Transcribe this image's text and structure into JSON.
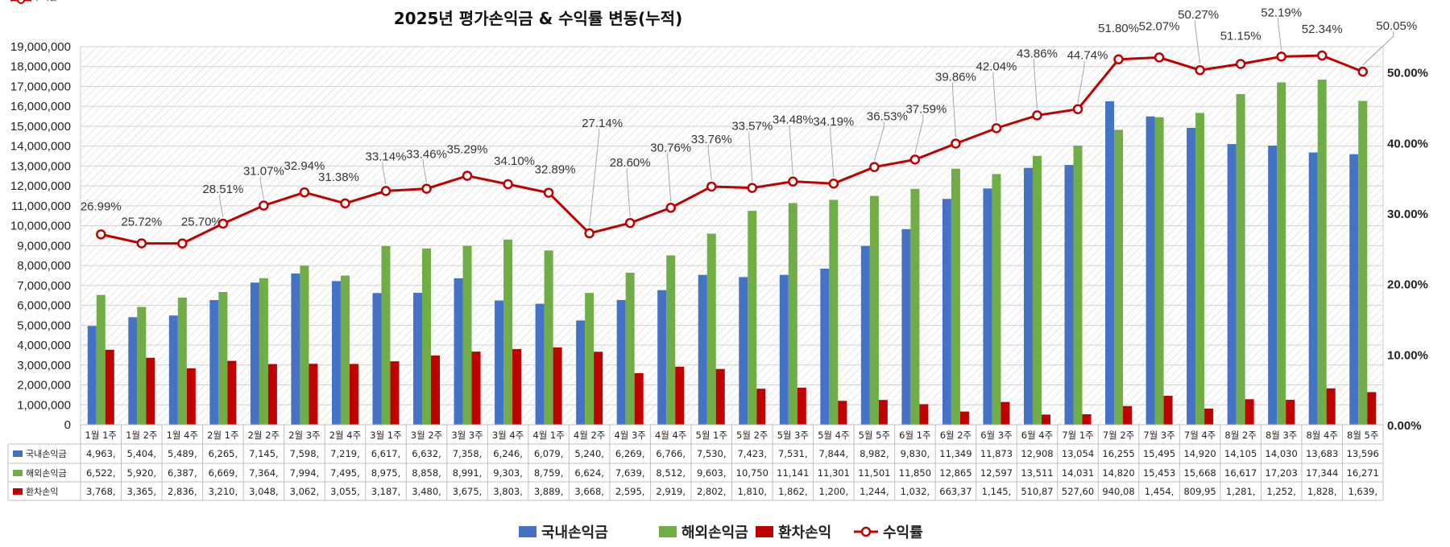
{
  "chart_data": {
    "type": "bar",
    "title": "2025년 평가손익금 & 수익률 변동(누적)",
    "categories": [
      "1월 1주",
      "1월 2주",
      "1월 4주",
      "2월 1주",
      "2월 2주",
      "2월 3주",
      "2월 4주",
      "3월 1주",
      "3월 2주",
      "3월 3주",
      "3월 4주",
      "4월 1주",
      "4월 2주",
      "4월 3주",
      "4월 4주",
      "5월 1주",
      "5월 2주",
      "5월 3주",
      "5월 4주",
      "5월 5주",
      "6월 1주",
      "6월 2주",
      "6월 3주",
      "6월 4주",
      "7월 1주",
      "7월 2주",
      "7월 3주",
      "7월 4주",
      "8월 2주",
      "8월 3주",
      "8월 4주",
      "8월 5주"
    ],
    "ylim": [
      0,
      19000000
    ],
    "y_ticks": [
      "0",
      "1,000,000",
      "2,000,000",
      "3,000,000",
      "4,000,000",
      "5,000,000",
      "6,000,000",
      "7,000,000",
      "8,000,000",
      "9,000,000",
      "10,000,000",
      "11,000,000",
      "12,000,000",
      "13,000,000",
      "14,000,000",
      "15,000,000",
      "16,000,000",
      "17,000,000",
      "18,000,000",
      "19,000,000"
    ],
    "y2lim": [
      0,
      53.6
    ],
    "y2_ticks": [
      "0.00%",
      "10.00%",
      "20.00%",
      "30.00%",
      "40.00%",
      "50.00%"
    ],
    "legend_position": "bottom",
    "series": [
      {
        "name": "국내손익금",
        "kind": "bar",
        "color": "#4472C4",
        "values": [
          4963000,
          5404000,
          5489000,
          6265000,
          7145000,
          7598000,
          7219000,
          6617000,
          6632000,
          7358000,
          6246000,
          6079000,
          5240000,
          6269000,
          6766000,
          7530000,
          7423000,
          7531000,
          7844000,
          8982000,
          9830000,
          11349000,
          11873000,
          12908000,
          13054000,
          16255000,
          15495000,
          14920000,
          14105000,
          14030000,
          13683000,
          13596000
        ],
        "table_cells": [
          "4,963,",
          "5,404,",
          "5,489,",
          "6,265,",
          "7,145,",
          "7,598,",
          "7,219,",
          "6,617,",
          "6,632,",
          "7,358,",
          "6,246,",
          "6,079,",
          "5,240,",
          "6,269,",
          "6,766,",
          "7,530,",
          "7,423,",
          "7,531,",
          "7,844,",
          "8,982,",
          "9,830,",
          "11,349",
          "11,873",
          "12,908",
          "13,054",
          "16,255",
          "15,495",
          "14,920",
          "14,105",
          "14,030",
          "13,683",
          "13,596"
        ]
      },
      {
        "name": "해외손익금",
        "kind": "bar",
        "color": "#70AD47",
        "values": [
          6522000,
          5920000,
          6387000,
          6669000,
          7364000,
          7994000,
          7495000,
          8975000,
          8858000,
          8991000,
          9303000,
          8759000,
          6624000,
          7639000,
          8512000,
          9603000,
          10750000,
          11141000,
          11301000,
          11501000,
          11850000,
          12865000,
          12597000,
          13511000,
          14031000,
          14820000,
          15453000,
          15668000,
          16617000,
          17203000,
          17344000,
          16271000
        ],
        "table_cells": [
          "6,522,",
          "5,920,",
          "6,387,",
          "6,669,",
          "7,364,",
          "7,994,",
          "7,495,",
          "8,975,",
          "8,858,",
          "8,991,",
          "9,303,",
          "8,759,",
          "6,624,",
          "7,639,",
          "8,512,",
          "9,603,",
          "10,750",
          "11,141",
          "11,301",
          "11,501",
          "11,850",
          "12,865",
          "12,597",
          "13,511",
          "14,031",
          "14,820",
          "15,453",
          "15,668",
          "16,617",
          "17,203",
          "17,344",
          "16,271"
        ]
      },
      {
        "name": "환차손익",
        "kind": "bar",
        "color": "#C00000",
        "values": [
          3768000,
          3365000,
          2836000,
          3210000,
          3048000,
          3062000,
          3055000,
          3187000,
          3480000,
          3675000,
          3803000,
          3889000,
          3668000,
          2595000,
          2919000,
          2802000,
          1810000,
          1862000,
          1200000,
          1244000,
          1032000,
          663370,
          1145000,
          510870,
          527600,
          940080,
          1454000,
          809950,
          1281000,
          1252000,
          1828000,
          1639000
        ],
        "table_cells": [
          "3,768,",
          "3,365,",
          "2,836,",
          "3,210,",
          "3,048,",
          "3,062,",
          "3,055,",
          "3,187,",
          "3,480,",
          "3,675,",
          "3,803,",
          "3,889,",
          "3,668,",
          "2,595,",
          "2,919,",
          "2,802,",
          "1,810,",
          "1,862,",
          "1,200,",
          "1,244,",
          "1,032,",
          "663,37",
          "1,145,",
          "510,87",
          "527,60",
          "940,08",
          "1,454,",
          "809,95",
          "1,281,",
          "1,252,",
          "1,828,",
          "1,639,"
        ]
      },
      {
        "name": "수익률",
        "kind": "line",
        "axis": "right",
        "color": "#C00000",
        "values": [
          26.99,
          25.72,
          25.7,
          28.51,
          31.07,
          32.94,
          31.38,
          33.14,
          33.46,
          35.29,
          34.1,
          32.89,
          27.14,
          28.6,
          30.76,
          33.76,
          33.57,
          34.48,
          34.19,
          36.53,
          37.59,
          39.86,
          42.04,
          43.86,
          44.74,
          51.8,
          52.07,
          50.27,
          51.15,
          52.19,
          52.34,
          50.05
        ],
        "data_labels": [
          "26.99%",
          "25.72%",
          "25.70%",
          "28.51%",
          "31.07%",
          "32.94%",
          "31.38%",
          "33.14%",
          "33.46%",
          "35.29%",
          "34.10%",
          "32.89%",
          "27.14%",
          "28.60%",
          "30.76%",
          "33.76%",
          "33.57%",
          "34.48%",
          "34.19%",
          "36.53%",
          "37.59%",
          "39.86%",
          "42.04%",
          "43.86%",
          "44.74%",
          "51.80%",
          "52.07%",
          "50.27%",
          "51.15%",
          "52.19%",
          "52.34%",
          "50.05%"
        ],
        "table_cells": [
          "26.99%",
          "25.72%",
          "25.70%",
          "28.51%",
          "31.07%",
          "32.94%",
          "31.38%",
          "33.14%",
          "33.46%",
          "35.29%",
          "34.10%",
          "32.89%",
          "27.14%",
          "28.60%",
          "30.76%",
          "33.76%",
          "33.57%",
          "34.48%",
          "34.19%",
          "36.53%",
          "37.59%",
          "39.86%",
          "42.04%",
          "43.86%",
          "44.74%",
          "51.80%",
          "52.07%",
          "50.27%",
          "51.15%",
          "52.19%",
          "52.34%",
          "50.05%"
        ]
      }
    ]
  }
}
